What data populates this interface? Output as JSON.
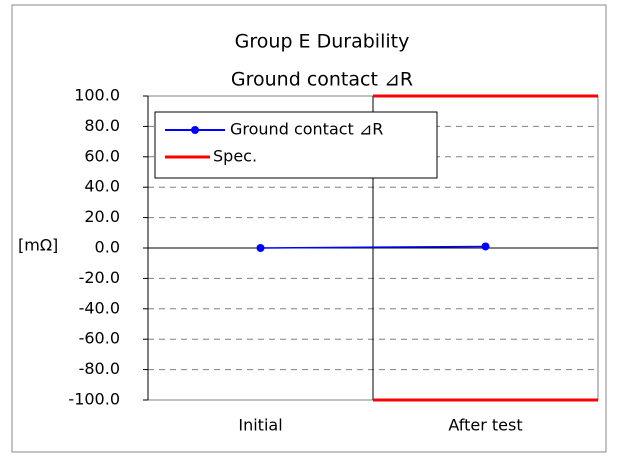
{
  "chart_data": {
    "type": "line",
    "title": "Group E  Durability",
    "subtitle": "Ground contact ⊿R",
    "y_label": "[mΩ]",
    "categories": [
      "Initial",
      "After test"
    ],
    "series": [
      {
        "name": "Ground contact ⊿R",
        "color": "#0000ff",
        "values": [
          0,
          1
        ]
      }
    ],
    "spec": {
      "name": "Spec.",
      "color": "#ff0000",
      "upper": [
        null,
        100
      ],
      "lower": [
        null,
        -100
      ]
    },
    "ylim": [
      -100,
      100
    ],
    "yticks": [
      {
        "value": -100,
        "label": "-100.0"
      },
      {
        "value": -80,
        "label": "-80.0"
      },
      {
        "value": -60,
        "label": "-60.0"
      },
      {
        "value": -40,
        "label": "-40.0"
      },
      {
        "value": -20,
        "label": "-20.0"
      },
      {
        "value": 0,
        "label": "0.0"
      },
      {
        "value": 20,
        "label": "20.0"
      },
      {
        "value": 40,
        "label": "40.0"
      },
      {
        "value": 60,
        "label": "60.0"
      },
      {
        "value": 80,
        "label": "80.0"
      },
      {
        "value": 100,
        "label": "100.0"
      }
    ],
    "grid": true,
    "legend": "upper left"
  }
}
